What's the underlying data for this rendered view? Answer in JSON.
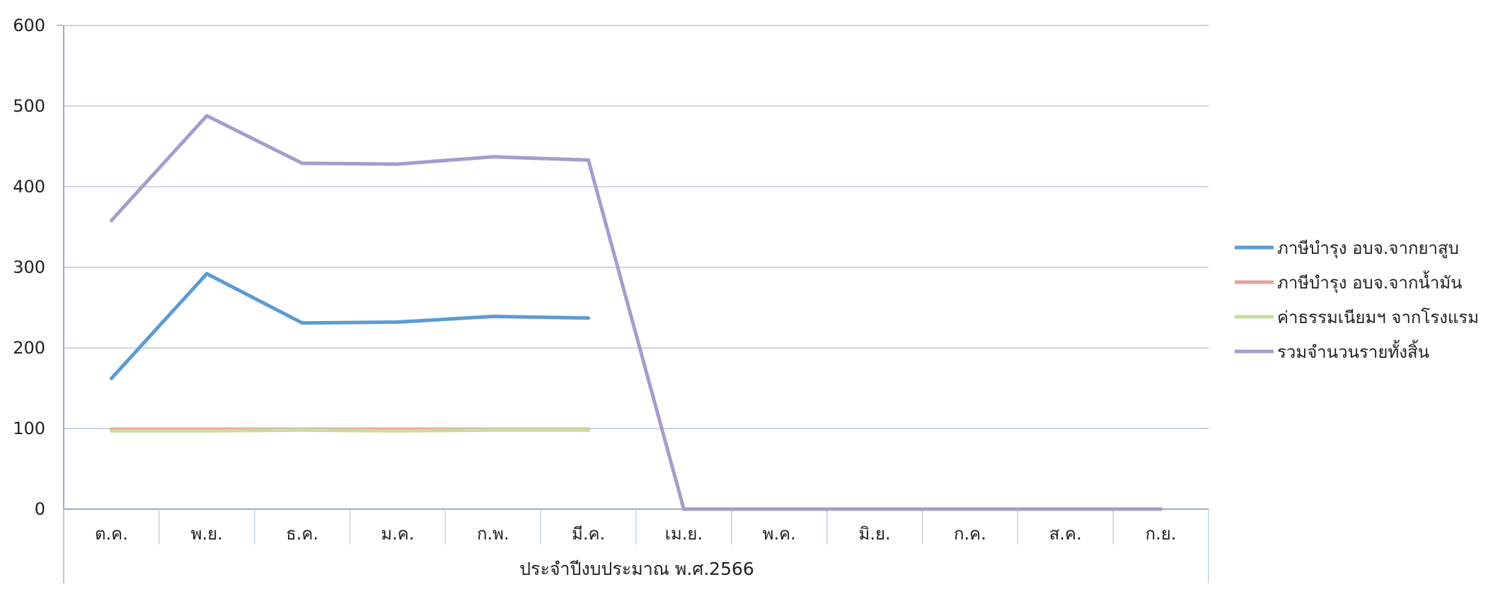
{
  "chart_data": {
    "type": "line",
    "title": "",
    "xlabel": "ประจำปีงบประมาณ พ.ศ.2566",
    "ylabel": "",
    "ylim": [
      0,
      600
    ],
    "yticks": [
      0,
      100,
      200,
      300,
      400,
      500,
      600
    ],
    "grid": true,
    "legend_position": "right",
    "categories": [
      "ต.ค.",
      "พ.ย.",
      "ธ.ค.",
      "ม.ค.",
      "ก.พ.",
      "มี.ค.",
      "เม.ย.",
      "พ.ค.",
      "มิ.ย.",
      "ก.ค.",
      "ส.ค.",
      "ก.ย."
    ],
    "series": [
      {
        "name": "ภาษีบำรุง อบจ.จากยาสูบ",
        "color": "#5b9bd5",
        "values": [
          162,
          292,
          231,
          232,
          239,
          237,
          null,
          null,
          null,
          null,
          null,
          null
        ]
      },
      {
        "name": "ภาษีบำรุง อบจ.จากน้ำมัน",
        "color": "#e8a09a",
        "values": [
          99,
          99,
          99,
          99,
          99,
          99,
          null,
          null,
          null,
          null,
          null,
          null
        ]
      },
      {
        "name": "ค่าธรรมเนียมฯ จากโรงแรม",
        "color": "#c5df9d",
        "values": [
          97,
          97,
          98,
          97,
          98,
          98,
          null,
          null,
          null,
          null,
          null,
          null
        ]
      },
      {
        "name": "รวมจำนวนรายทั้งสิ้น",
        "color": "#a79ccd",
        "values": [
          358,
          488,
          429,
          428,
          437,
          433,
          0,
          0,
          0,
          0,
          0,
          0
        ]
      }
    ]
  }
}
